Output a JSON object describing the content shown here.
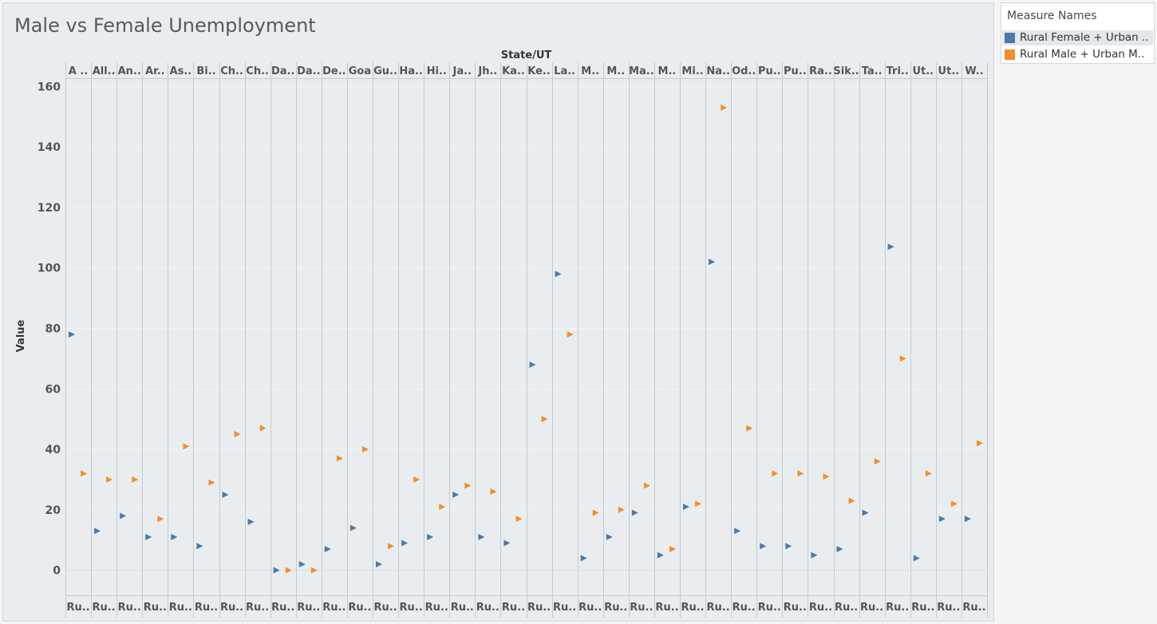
{
  "title": "Male vs Female Unemployment",
  "legend": {
    "title": "Measure Names",
    "items": [
      {
        "label": "Rural Female + Urban ..",
        "color": "#4e79a7"
      },
      {
        "label": "Rural Male + Urban M..",
        "color": "#f28e2b"
      }
    ]
  },
  "chart_data": {
    "type": "scatter",
    "xlabel": "State/UT",
    "ylabel": "Value",
    "ylim": [
      -8,
      163
    ],
    "yticks": [
      0,
      20,
      40,
      60,
      80,
      100,
      120,
      140,
      160
    ],
    "grid": true,
    "legend_position": "right",
    "categories": [
      "A ..",
      "All..",
      "An..",
      "Ar..",
      "As..",
      "Bi..",
      "Ch..",
      "Ch..",
      "Da..",
      "Da..",
      "De..",
      "Goa",
      "Gu..",
      "Ha..",
      "Hi..",
      "Ja..",
      "Jh..",
      "Ka..",
      "Ke..",
      "La..",
      "M..",
      "M..",
      "Ma..",
      "M..",
      "Mi..",
      "Na..",
      "Od..",
      "Pu..",
      "Pu..",
      "Ra..",
      "Sik..",
      "Ta..",
      "Tri..",
      "Ut..",
      "Ut..",
      "W.."
    ],
    "bottom_labels": [
      "Ru..",
      "Ru..",
      "Ru..",
      "Ru..",
      "Ru..",
      "Ru..",
      "Ru..",
      "Ru..",
      "Ru..",
      "Ru..",
      "Ru..",
      "Ru..",
      "Ru..",
      "Ru..",
      "Ru..",
      "Ru..",
      "Ru..",
      "Ru..",
      "Ru..",
      "Ru..",
      "Ru..",
      "Ru..",
      "Ru..",
      "Ru..",
      "Ru..",
      "Ru..",
      "Ru..",
      "Ru..",
      "Ru..",
      "Ru..",
      "Ru..",
      "Ru..",
      "Ru..",
      "Ru..",
      "Ru..",
      "Ru.."
    ],
    "series": [
      {
        "name": "Rural Female + Urban ..",
        "color": "#4e79a7",
        "values": [
          78,
          13,
          18,
          11,
          11,
          8,
          25,
          16,
          0,
          2,
          7,
          14,
          2,
          9,
          11,
          25,
          11,
          9,
          68,
          98,
          4,
          11,
          19,
          5,
          21,
          102,
          13,
          8,
          8,
          5,
          7,
          19,
          107,
          4,
          17,
          17
        ]
      },
      {
        "name": "Rural Male + Urban M..",
        "color": "#f28e2b",
        "values": [
          32,
          30,
          30,
          17,
          41,
          29,
          45,
          47,
          0,
          0,
          37,
          40,
          8,
          30,
          21,
          28,
          26,
          17,
          50,
          78,
          19,
          20,
          28,
          7,
          22,
          153,
          47,
          32,
          32,
          31,
          23,
          36,
          70,
          32,
          22,
          42
        ]
      }
    ]
  }
}
